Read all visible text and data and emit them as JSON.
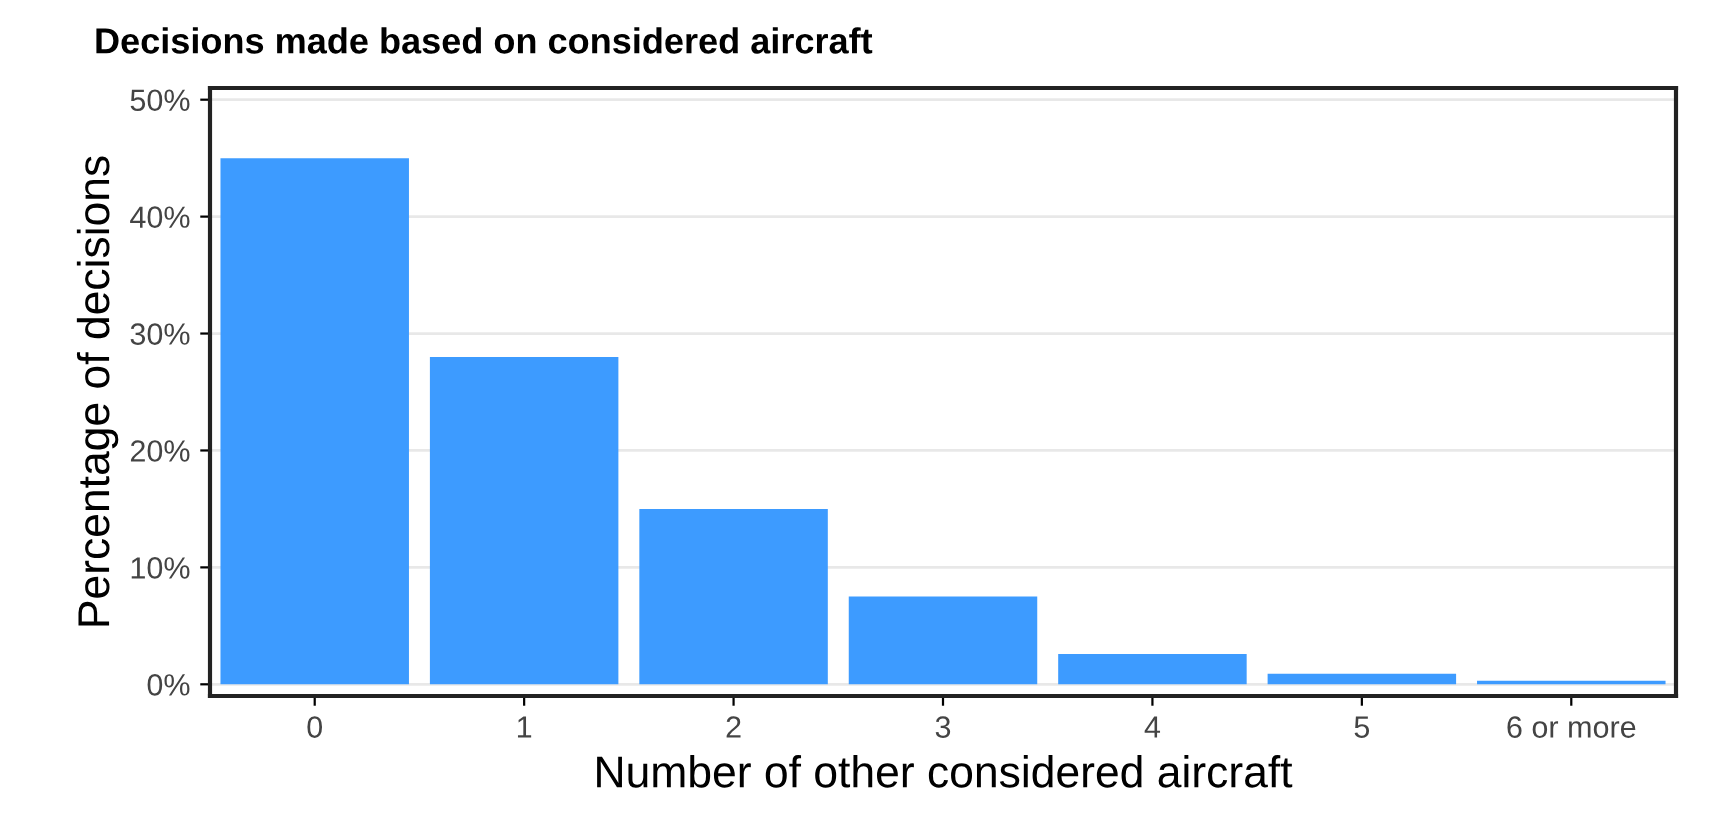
{
  "chart_data": {
    "type": "bar",
    "title": "Decisions made based on considered aircraft",
    "xlabel": "Number of other considered aircraft",
    "ylabel": "Percentage of decisions",
    "categories": [
      "0",
      "1",
      "2",
      "3",
      "4",
      "5",
      "6 or more"
    ],
    "values": [
      45,
      28,
      15,
      7.5,
      2.6,
      0.9,
      0.3
    ],
    "color": "#3d9bff",
    "ylim": [
      -1,
      51
    ],
    "yticks": [
      {
        "value": 0,
        "label": "0%"
      },
      {
        "value": 10,
        "label": "10%"
      },
      {
        "value": 20,
        "label": "20%"
      },
      {
        "value": 30,
        "label": "30%"
      },
      {
        "value": 40,
        "label": "40%"
      },
      {
        "value": 50,
        "label": "50%"
      }
    ],
    "grid": "y"
  }
}
